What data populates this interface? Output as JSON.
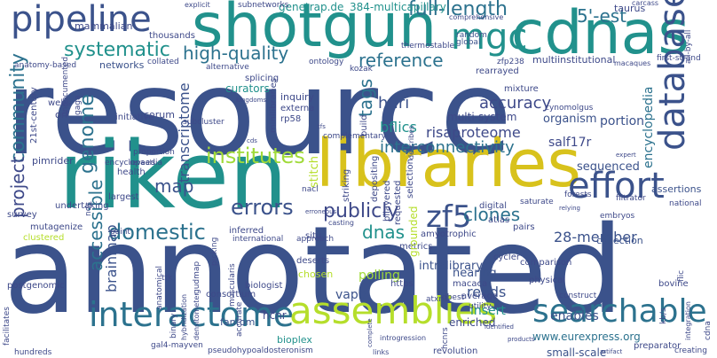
{
  "words": [
    {
      "text": "resource",
      "color": "#3b528b"
    },
    {
      "text": "annotated",
      "color": "#3b528b"
    },
    {
      "text": "riken",
      "color": "#21918c"
    },
    {
      "text": "libraries",
      "color": "#d8c21c"
    },
    {
      "text": "cdnas",
      "color": "#21918c"
    },
    {
      "text": "shotgun",
      "color": "#21918c"
    },
    {
      "text": "pipeline",
      "color": "#3b528b"
    },
    {
      "text": "interactome",
      "color": "#2c728e"
    },
    {
      "text": "assemblies",
      "color": "#b5de2b"
    },
    {
      "text": "searchable",
      "color": "#2c728e"
    },
    {
      "text": "database",
      "color": "#3b528b"
    },
    {
      "text": "effort",
      "color": "#3b528b"
    },
    {
      "text": "mgc",
      "color": "#21918c"
    },
    {
      "text": "zf5",
      "color": "#3b528b"
    },
    {
      "text": "publicly",
      "color": "#3e4989"
    },
    {
      "text": "errors",
      "color": "#3b528b"
    },
    {
      "text": "domestic",
      "color": "#2c728e"
    },
    {
      "text": "institutes",
      "color": "#a0da39"
    },
    {
      "text": "full-length",
      "color": "#2c728e"
    },
    {
      "text": "5'-est",
      "color": "#2c728e"
    },
    {
      "text": "systematic",
      "color": "#21918c"
    },
    {
      "text": "high-quality",
      "color": "#2c728e"
    },
    {
      "text": "reference",
      "color": "#2c728e"
    },
    {
      "text": "genome",
      "color": "#2c728e"
    },
    {
      "text": "community",
      "color": "#2c728e"
    },
    {
      "text": "project",
      "color": "#3e4989"
    },
    {
      "text": "accessible",
      "color": "#2c728e"
    },
    {
      "text": "tags",
      "color": "#2c728e"
    },
    {
      "text": "clones",
      "color": "#2c728e"
    },
    {
      "text": "dnas",
      "color": "#21918c"
    },
    {
      "text": "map",
      "color": "#3b528b"
    },
    {
      "text": "interconnectivity",
      "color": "#2c728e"
    },
    {
      "text": "accuracy",
      "color": "#3e4989"
    },
    {
      "text": "huri",
      "color": "#3b528b"
    },
    {
      "text": "bflics",
      "color": "#21918c"
    },
    {
      "text": "risaproteome",
      "color": "#3e4989"
    },
    {
      "text": "28-member",
      "color": "#3b528b"
    },
    {
      "text": "reads",
      "color": "#3b528b"
    },
    {
      "text": "brainmap",
      "color": "#3b528b"
    },
    {
      "text": "transcriptome",
      "color": "#3b528b"
    },
    {
      "text": "genetrap.de",
      "color": "#21918c"
    },
    {
      "text": "384-multicapillary",
      "color": "#21918c"
    },
    {
      "text": "taurus",
      "color": "#3e4989"
    },
    {
      "text": "encyclopedia",
      "color": "#2c728e"
    },
    {
      "text": "salf17r",
      "color": "#3e4989"
    },
    {
      "text": "portion",
      "color": "#3b528b"
    },
    {
      "text": "organism",
      "color": "#3b528b"
    },
    {
      "text": "sequenced",
      "color": "#3b528b"
    },
    {
      "text": "assertions",
      "color": "#3b528b"
    },
    {
      "text": "collection",
      "color": "#3b528b"
    },
    {
      "text": "www.eurexpress.org",
      "color": "#2c728e"
    },
    {
      "text": "small-scale",
      "color": "#3b528b"
    },
    {
      "text": "intralibrary",
      "color": "#3b528b"
    },
    {
      "text": "nearing",
      "color": "#3b528b"
    },
    {
      "text": "polling",
      "color": "#a0da39"
    },
    {
      "text": "vapb",
      "color": "#3b528b"
    },
    {
      "text": "insert",
      "color": "#21918c"
    },
    {
      "text": "enables",
      "color": "#3b528b"
    },
    {
      "text": "enriched",
      "color": "#3e4989"
    },
    {
      "text": "hcnr",
      "color": "#3e4989"
    },
    {
      "text": "bioplex",
      "color": "#21918c"
    },
    {
      "text": "fantom",
      "color": "#3b528b"
    },
    {
      "text": "mammalian",
      "color": "#3e4989"
    },
    {
      "text": "thousands",
      "color": "#3e4989"
    },
    {
      "text": "networks",
      "color": "#3b528b"
    },
    {
      "text": "comprehensive",
      "color": "#3e4989"
    },
    {
      "text": "random",
      "color": "#3b528b"
    },
    {
      "text": "global",
      "color": "#3b528b"
    },
    {
      "text": "rearrayed",
      "color": "#3e4989"
    },
    {
      "text": "multiinstitutional",
      "color": "#3e4989"
    },
    {
      "text": "ontology",
      "color": "#3e4989"
    },
    {
      "text": "kozak",
      "color": "#3e4989"
    },
    {
      "text": "zfp238",
      "color": "#3e4989"
    },
    {
      "text": "first-strand",
      "color": "#3e4989"
    },
    {
      "text": "macaques",
      "color": "#3e4989"
    },
    {
      "text": "curators",
      "color": "#21918c"
    },
    {
      "text": "inquiry",
      "color": "#3e4989"
    },
    {
      "text": "externa",
      "color": "#3e4989"
    },
    {
      "text": "rp58",
      "color": "#3e4989"
    },
    {
      "text": "complementary",
      "color": "#3e4989"
    },
    {
      "text": "corum",
      "color": "#3e4989"
    },
    {
      "text": "initiative",
      "color": "#3e4989"
    },
    {
      "text": "subcluster",
      "color": "#3e4989"
    },
    {
      "text": "21st-century",
      "color": "#3e4989"
    },
    {
      "text": "undocumented",
      "color": "#3e4989"
    },
    {
      "text": "webs",
      "color": "#3e4989"
    },
    {
      "text": "orf",
      "color": "#3e4989"
    },
    {
      "text": "pimrider",
      "color": "#3e4989"
    },
    {
      "text": "encyclopaedia",
      "color": "#3e4989"
    },
    {
      "text": "health",
      "color": "#3e4989"
    },
    {
      "text": "stitch",
      "color": "#b5de2b"
    },
    {
      "text": "nacl",
      "color": "#3e4989"
    },
    {
      "text": "digital",
      "color": "#3e4989"
    },
    {
      "text": "atlas",
      "color": "#3e4989"
    },
    {
      "text": "pairs",
      "color": "#3e4989"
    },
    {
      "text": "mixture",
      "color": "#3e4989"
    },
    {
      "text": "cynomolgus",
      "color": "#3e4989"
    },
    {
      "text": "inferred",
      "color": "#3e4989"
    },
    {
      "text": "situ",
      "color": "#3e4989"
    },
    {
      "text": "survey",
      "color": "#3e4989"
    },
    {
      "text": "largest",
      "color": "#3e4989"
    },
    {
      "text": "mutagenize",
      "color": "#3e4989"
    },
    {
      "text": "clustered",
      "color": "#b5de2b"
    },
    {
      "text": "paint",
      "color": "#3e4989"
    },
    {
      "text": "international",
      "color": "#3e4989"
    },
    {
      "text": "approach",
      "color": "#3e4989"
    },
    {
      "text": "amyotrophic",
      "color": "#3e4989"
    },
    {
      "text": "metrics",
      "color": "#3e4989"
    },
    {
      "text": "deserts",
      "color": "#3e4989"
    },
    {
      "text": "chosen",
      "color": "#b5de2b"
    },
    {
      "text": "cycler",
      "color": "#3e4989"
    },
    {
      "text": "comparison",
      "color": "#3e4989"
    },
    {
      "text": "macaca",
      "color": "#3e4989"
    },
    {
      "text": "physical",
      "color": "#3e4989"
    },
    {
      "text": "average",
      "color": "#3e4989"
    },
    {
      "text": "utility",
      "color": "#3e4989"
    },
    {
      "text": "dbest",
      "color": "#3e4989"
    },
    {
      "text": "construct",
      "color": "#3e4989"
    },
    {
      "text": "bovine",
      "color": "#3e4989"
    },
    {
      "text": "postgenomic",
      "color": "#3e4989"
    },
    {
      "text": "consortium",
      "color": "#3e4989"
    },
    {
      "text": "biologist",
      "color": "#3e4989"
    },
    {
      "text": "https",
      "color": "#3e4989"
    },
    {
      "text": "preparator",
      "color": "#3e4989"
    },
    {
      "text": "revolution",
      "color": "#3e4989"
    },
    {
      "text": "pseudohypoaldosteronism",
      "color": "#3e4989"
    },
    {
      "text": "hundreds",
      "color": "#3e4989"
    },
    {
      "text": "gal4-mayven",
      "color": "#3e4989"
    },
    {
      "text": "creating",
      "color": "#3e4989"
    },
    {
      "text": "saturate",
      "color": "#3e4989"
    },
    {
      "text": "forests",
      "color": "#3e4989"
    },
    {
      "text": "embryos",
      "color": "#3e4989"
    },
    {
      "text": "filtrator",
      "color": "#3e4989"
    },
    {
      "text": "national",
      "color": "#3e4989"
    },
    {
      "text": "flic",
      "color": "#3e4989"
    },
    {
      "text": "cdna",
      "color": "#3e4989"
    },
    {
      "text": "integration",
      "color": "#3e4989"
    },
    {
      "text": "facilitates",
      "color": "#3e4989"
    },
    {
      "text": "anatomical",
      "color": "#3e4989"
    },
    {
      "text": "gudmap",
      "color": "#3e4989"
    },
    {
      "text": "binary",
      "color": "#3e4989"
    },
    {
      "text": "hybridization",
      "color": "#3e4989"
    },
    {
      "text": "densitometer",
      "color": "#3e4989"
    },
    {
      "text": "undertaking",
      "color": "#3e4989"
    },
    {
      "text": "nds",
      "color": "#3e4989"
    },
    {
      "text": "picking",
      "color": "#3e4989"
    },
    {
      "text": "proportion",
      "color": "#3e4989"
    },
    {
      "text": "reveals",
      "color": "#3e4989"
    },
    {
      "text": "build",
      "color": "#3e4989"
    },
    {
      "text": "striking",
      "color": "#3e4989"
    },
    {
      "text": "depositing",
      "color": "#3e4989"
    },
    {
      "text": "bilayered",
      "color": "#3e4989"
    },
    {
      "text": "requested",
      "color": "#3e4989"
    },
    {
      "text": "selection",
      "color": "#3e4989"
    },
    {
      "text": "grounded",
      "color": "#3e4989"
    },
    {
      "text": "minilibraries",
      "color": "#b5de2b"
    },
    {
      "text": "splicing",
      "color": "#3e4989"
    },
    {
      "text": "gaga",
      "color": "#3e4989"
    },
    {
      "text": "anatomy-based",
      "color": "#3e4989"
    },
    {
      "text": "collated",
      "color": "#3e4989"
    },
    {
      "text": "alternative",
      "color": "#3e4989"
    },
    {
      "text": "thermostable",
      "color": "#3e4989"
    },
    {
      "text": "all-by-all",
      "color": "#3e4989"
    },
    {
      "text": "subnetworks",
      "color": "#3e4989"
    },
    {
      "text": "explicit",
      "color": "#3e4989"
    },
    {
      "text": "carcass",
      "color": "#3e4989"
    },
    {
      "text": "multi-system",
      "color": "#3e4989"
    },
    {
      "text": "accurate",
      "color": "#3e4989"
    },
    {
      "text": "muscularis",
      "color": "#3e4989"
    },
    {
      "text": "hcnrs",
      "color": "#3e4989"
    },
    {
      "text": "atxn1",
      "color": "#3e4989"
    },
    {
      "text": "ttk",
      "color": "#3e4989"
    },
    {
      "text": "kb/s",
      "color": "#3e4989"
    },
    {
      "text": "tfs",
      "color": "#3e4989"
    },
    {
      "text": "cds",
      "color": "#3e4989"
    },
    {
      "text": "kingdoms",
      "color": "#3e4989"
    },
    {
      "text": "relying",
      "color": "#3e4989"
    },
    {
      "text": "expert",
      "color": "#3e4989"
    },
    {
      "text": "erroneous",
      "color": "#3e4989"
    },
    {
      "text": "casting",
      "color": "#3e4989"
    },
    {
      "text": "complete",
      "color": "#3e4989"
    },
    {
      "text": "links",
      "color": "#3e4989"
    },
    {
      "text": "artifact",
      "color": "#3e4989"
    },
    {
      "text": "products",
      "color": "#3e4989"
    },
    {
      "text": "identified",
      "color": "#3e4989"
    },
    {
      "text": "introgression",
      "color": "#3e4989"
    },
    {
      "text": "describes",
      "color": "#3e4989"
    },
    {
      "text": "representing",
      "color": "#3e4989"
    }
  ]
}
